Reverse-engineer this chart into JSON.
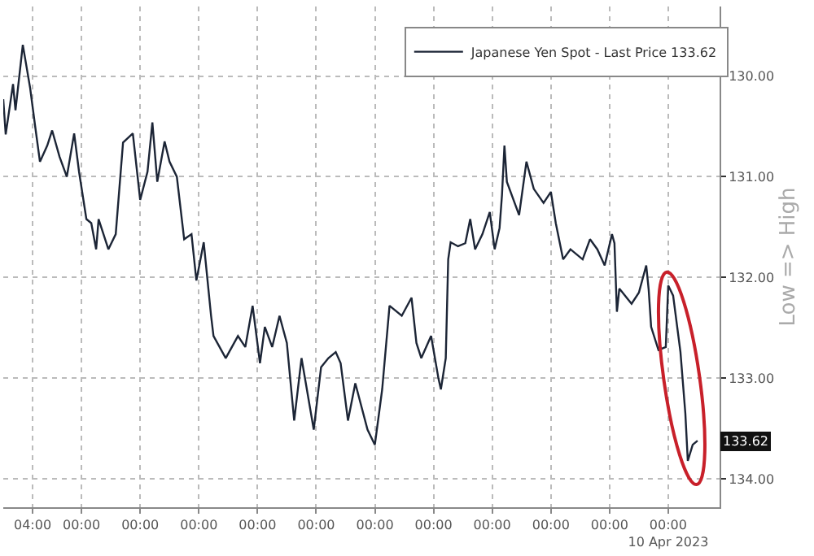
{
  "chart_data": {
    "type": "line",
    "ylabel": "Low => High",
    "x": [
      "2023-03-29T16:00",
      "2023-03-29T17:00",
      "2023-03-29T20:00",
      "2023-03-29T21:00",
      "2023-03-30T00:00",
      "2023-03-30T03:00",
      "2023-03-30T05:00",
      "2023-03-30T07:00",
      "2023-03-30T10:00",
      "2023-03-30T12:00",
      "2023-03-30T15:00",
      "2023-03-30T18:00",
      "2023-03-30T21:00",
      "2023-03-30T23:00",
      "2023-03-31T02:00",
      "2023-03-31T04:00",
      "2023-03-31T06:00",
      "2023-03-31T07:00",
      "2023-03-31T11:00",
      "2023-03-31T14:00",
      "2023-03-31T17:00",
      "2023-03-31T21:00",
      "2023-04-01T00:00",
      "2023-04-01T03:00",
      "2023-04-01T05:00",
      "2023-04-01T07:00",
      "2023-04-01T10:00",
      "2023-04-01T12:00",
      "2023-04-01T15:00",
      "2023-04-01T18:00",
      "2023-04-01T21:00",
      "2023-04-01T23:00",
      "2023-04-02T02:00",
      "2023-04-02T05:00",
      "2023-04-02T06:00",
      "2023-04-02T11:00",
      "2023-04-02T16:00",
      "2023-04-02T19:00",
      "2023-04-02T22:00",
      "2023-04-03T01:00",
      "2023-04-03T03:00",
      "2023-04-03T06:00",
      "2023-04-03T09:00",
      "2023-04-03T12:00",
      "2023-04-03T15:00",
      "2023-04-03T18:00",
      "2023-04-03T23:00",
      "2023-04-04T02:00",
      "2023-04-04T05:00",
      "2023-04-04T08:00",
      "2023-04-04T10:00",
      "2023-04-04T13:00",
      "2023-04-04T16:00",
      "2023-04-04T21:00",
      "2023-04-05T00:00",
      "2023-04-05T03:00",
      "2023-04-05T06:00",
      "2023-04-05T11:00",
      "2023-04-05T15:00",
      "2023-04-05T17:00",
      "2023-04-05T19:00",
      "2023-04-05T23:00",
      "2023-04-06T02:00",
      "2023-04-06T03:00",
      "2023-04-06T05:00",
      "2023-04-06T06:00",
      "2023-04-06T07:00",
      "2023-04-06T10:00",
      "2023-04-06T13:00",
      "2023-04-06T15:00",
      "2023-04-06T17:00",
      "2023-04-06T20:00",
      "2023-04-06T23:00",
      "2023-04-07T01:00",
      "2023-04-07T03:00",
      "2023-04-07T04:00",
      "2023-04-07T05:00",
      "2023-04-07T06:00",
      "2023-04-07T11:00",
      "2023-04-07T14:00",
      "2023-04-07T17:00",
      "2023-04-07T21:00",
      "2023-04-08T00:00",
      "2023-04-08T02:00",
      "2023-04-08T05:00",
      "2023-04-08T08:00",
      "2023-04-08T13:00",
      "2023-04-08T16:00",
      "2023-04-08T19:00",
      "2023-04-08T22:00",
      "2023-04-09T01:00",
      "2023-04-09T02:00",
      "2023-04-09T03:00",
      "2023-04-09T04:00",
      "2023-04-09T07:00",
      "2023-04-09T09:00",
      "2023-04-09T12:00",
      "2023-04-09T15:00",
      "2023-04-09T16:00",
      "2023-04-09T17:00",
      "2023-04-09T20:00",
      "2023-04-09T23:00",
      "2023-04-10T00:00",
      "2023-04-10T02:00",
      "2023-04-10T05:00",
      "2023-04-10T07:00",
      "2023-04-10T08:00",
      "2023-04-10T10:00",
      "2023-04-10T12:00"
    ],
    "series": [
      {
        "name": "Japanese Yen Spot - Last Price 133.62",
        "color": "#1c2536",
        "values": [
          130.23,
          130.58,
          130.08,
          130.34,
          129.69,
          130.12,
          130.49,
          130.85,
          130.69,
          130.54,
          130.8,
          131.0,
          130.57,
          130.95,
          131.42,
          131.46,
          131.72,
          131.42,
          131.72,
          131.57,
          130.66,
          130.57,
          131.23,
          130.95,
          130.46,
          131.05,
          130.65,
          130.85,
          131.0,
          131.62,
          131.57,
          132.03,
          131.65,
          132.38,
          132.58,
          132.8,
          132.58,
          132.69,
          132.28,
          132.85,
          132.49,
          132.69,
          132.38,
          132.65,
          133.42,
          132.8,
          133.51,
          132.89,
          132.8,
          132.74,
          132.85,
          133.42,
          133.05,
          133.51,
          133.66,
          133.11,
          132.28,
          132.38,
          132.2,
          132.65,
          132.8,
          132.58,
          133.0,
          133.11,
          132.8,
          131.82,
          131.65,
          131.69,
          131.66,
          131.42,
          131.72,
          131.57,
          131.35,
          131.72,
          131.51,
          131.18,
          130.69,
          131.05,
          131.38,
          130.85,
          131.12,
          131.26,
          131.15,
          131.46,
          131.82,
          131.72,
          131.82,
          131.62,
          131.72,
          131.88,
          131.57,
          131.66,
          132.34,
          132.11,
          132.2,
          132.26,
          132.15,
          131.88,
          132.12,
          132.49,
          132.72,
          132.69,
          132.08,
          132.18,
          132.74,
          133.35,
          133.82,
          133.66,
          133.62
        ]
      }
    ],
    "xlim": [
      "2023-03-29T16:00",
      "2023-04-10T21:00"
    ],
    "xticks": [
      {
        "value": "2023-03-30T04:00",
        "label": "04:00"
      },
      {
        "value": "2023-03-31T00:00",
        "label": "00:00"
      },
      {
        "value": "2023-04-01T00:00",
        "label": "00:00"
      },
      {
        "value": "2023-04-02T00:00",
        "label": "00:00"
      },
      {
        "value": "2023-04-03T00:00",
        "label": "00:00"
      },
      {
        "value": "2023-04-04T00:00",
        "label": "00:00"
      },
      {
        "value": "2023-04-05T00:00",
        "label": "00:00"
      },
      {
        "value": "2023-04-06T00:00",
        "label": "00:00"
      },
      {
        "value": "2023-04-07T00:00",
        "label": "00:00"
      },
      {
        "value": "2023-04-08T00:00",
        "label": "00:00"
      },
      {
        "value": "2023-04-09T00:00",
        "label": "00:00"
      },
      {
        "value": "2023-04-10T00:00",
        "label": "00:00\n10 Apr 2023"
      }
    ],
    "ylim": [
      134.28,
      129.31
    ],
    "yticks": [
      {
        "value": 130,
        "label": "130.00"
      },
      {
        "value": 131,
        "label": "131.00"
      },
      {
        "value": 132,
        "label": "132.00"
      },
      {
        "value": 133,
        "label": "133.00"
      },
      {
        "value": 134,
        "label": "134.00"
      }
    ],
    "annotations": [
      {
        "text": "133.62",
        "y": 133.62
      }
    ],
    "grid": true,
    "legend": "top",
    "marker": "none",
    "line_style": "solid"
  }
}
